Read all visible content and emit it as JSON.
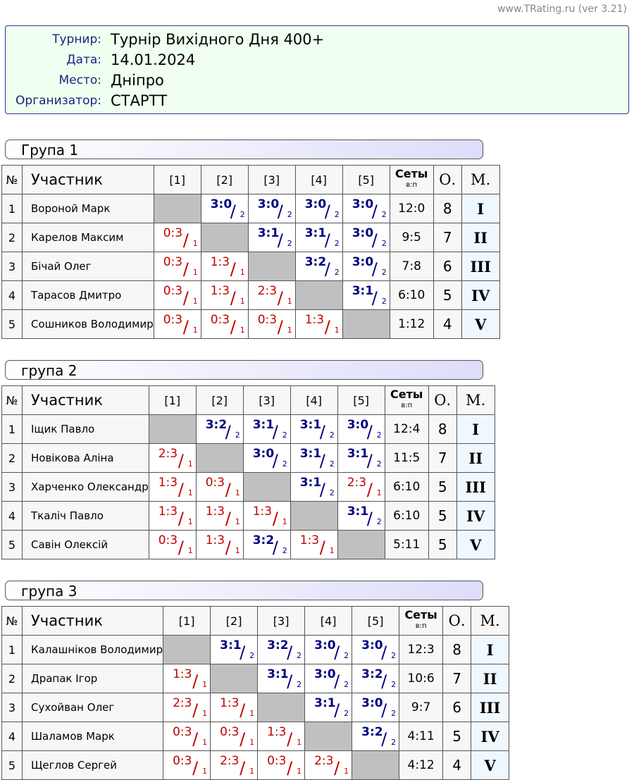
{
  "site": "www.TRating.ru (ver 3.21)",
  "info": [
    {
      "label": "Турнир:",
      "value": "Турнір Вихідного Дня 400+"
    },
    {
      "label": "Дата:",
      "value": "14.01.2024"
    },
    {
      "label": "Место:",
      "value": "Дніпро"
    },
    {
      "label": "Организатор:",
      "value": "СТАРТТ"
    }
  ],
  "table_header": {
    "num": "№",
    "participant": "Участник",
    "cols": [
      "[1]",
      "[2]",
      "[3]",
      "[4]",
      "[5]"
    ],
    "sets": "Сеты",
    "sets_sub": "в:п",
    "points": "О.",
    "place": "М."
  },
  "groups": [
    {
      "title": "Група 1",
      "rows": [
        {
          "num": 1,
          "name": "Вороной Марк",
          "results": [
            null,
            {
              "score": "3:0",
              "points": 2
            },
            {
              "score": "3:0",
              "points": 2
            },
            {
              "score": "3:0",
              "points": 2
            },
            {
              "score": "3:0",
              "points": 2
            }
          ],
          "sets": "12:0",
          "total": 8,
          "place": "I"
        },
        {
          "num": 2,
          "name": "Карелов Максим",
          "results": [
            {
              "score": "0:3",
              "points": 1
            },
            null,
            {
              "score": "3:1",
              "points": 2
            },
            {
              "score": "3:1",
              "points": 2
            },
            {
              "score": "3:0",
              "points": 2
            }
          ],
          "sets": "9:5",
          "total": 7,
          "place": "II"
        },
        {
          "num": 3,
          "name": "Бічай Олег",
          "results": [
            {
              "score": "0:3",
              "points": 1
            },
            {
              "score": "1:3",
              "points": 1
            },
            null,
            {
              "score": "3:2",
              "points": 2
            },
            {
              "score": "3:0",
              "points": 2
            }
          ],
          "sets": "7:8",
          "total": 6,
          "place": "III"
        },
        {
          "num": 4,
          "name": "Тарасов Дмитро",
          "results": [
            {
              "score": "0:3",
              "points": 1
            },
            {
              "score": "1:3",
              "points": 1
            },
            {
              "score": "2:3",
              "points": 1
            },
            null,
            {
              "score": "3:1",
              "points": 2
            }
          ],
          "sets": "6:10",
          "total": 5,
          "place": "IV"
        },
        {
          "num": 5,
          "name": "Сошников Володимир",
          "results": [
            {
              "score": "0:3",
              "points": 1
            },
            {
              "score": "0:3",
              "points": 1
            },
            {
              "score": "0:3",
              "points": 1
            },
            {
              "score": "1:3",
              "points": 1
            },
            null
          ],
          "sets": "1:12",
          "total": 4,
          "place": "V"
        }
      ]
    },
    {
      "title": "група 2",
      "rows": [
        {
          "num": 1,
          "name": "Іщик Павло",
          "results": [
            null,
            {
              "score": "3:2",
              "points": 2
            },
            {
              "score": "3:1",
              "points": 2
            },
            {
              "score": "3:1",
              "points": 2
            },
            {
              "score": "3:0",
              "points": 2
            }
          ],
          "sets": "12:4",
          "total": 8,
          "place": "I"
        },
        {
          "num": 2,
          "name": "Новікова Аліна",
          "results": [
            {
              "score": "2:3",
              "points": 1
            },
            null,
            {
              "score": "3:0",
              "points": 2
            },
            {
              "score": "3:1",
              "points": 2
            },
            {
              "score": "3:1",
              "points": 2
            }
          ],
          "sets": "11:5",
          "total": 7,
          "place": "II"
        },
        {
          "num": 3,
          "name": "Харченко Олександр",
          "results": [
            {
              "score": "1:3",
              "points": 1
            },
            {
              "score": "0:3",
              "points": 1
            },
            null,
            {
              "score": "3:1",
              "points": 2
            },
            {
              "score": "2:3",
              "points": 1
            }
          ],
          "sets": "6:10",
          "total": 5,
          "place": "III"
        },
        {
          "num": 4,
          "name": "Ткаліч Павло",
          "results": [
            {
              "score": "1:3",
              "points": 1
            },
            {
              "score": "1:3",
              "points": 1
            },
            {
              "score": "1:3",
              "points": 1
            },
            null,
            {
              "score": "3:1",
              "points": 2
            }
          ],
          "sets": "6:10",
          "total": 5,
          "place": "IV"
        },
        {
          "num": 5,
          "name": "Савін Олексій",
          "results": [
            {
              "score": "0:3",
              "points": 1
            },
            {
              "score": "1:3",
              "points": 1
            },
            {
              "score": "3:2",
              "points": 2
            },
            {
              "score": "1:3",
              "points": 1
            },
            null
          ],
          "sets": "5:11",
          "total": 5,
          "place": "V"
        }
      ]
    },
    {
      "title": "група 3",
      "rows": [
        {
          "num": 1,
          "name": "Калашніков Володимир",
          "results": [
            null,
            {
              "score": "3:1",
              "points": 2
            },
            {
              "score": "3:2",
              "points": 2
            },
            {
              "score": "3:0",
              "points": 2
            },
            {
              "score": "3:0",
              "points": 2
            }
          ],
          "sets": "12:3",
          "total": 8,
          "place": "I"
        },
        {
          "num": 2,
          "name": "Драпак Ігор",
          "results": [
            {
              "score": "1:3",
              "points": 1
            },
            null,
            {
              "score": "3:1",
              "points": 2
            },
            {
              "score": "3:0",
              "points": 2
            },
            {
              "score": "3:2",
              "points": 2
            }
          ],
          "sets": "10:6",
          "total": 7,
          "place": "II"
        },
        {
          "num": 3,
          "name": "Сухойван Олег",
          "results": [
            {
              "score": "2:3",
              "points": 1
            },
            {
              "score": "1:3",
              "points": 1
            },
            null,
            {
              "score": "3:1",
              "points": 2
            },
            {
              "score": "3:0",
              "points": 2
            }
          ],
          "sets": "9:7",
          "total": 6,
          "place": "III"
        },
        {
          "num": 4,
          "name": "Шаламов Марк",
          "results": [
            {
              "score": "0:3",
              "points": 1
            },
            {
              "score": "0:3",
              "points": 1
            },
            {
              "score": "1:3",
              "points": 1
            },
            null,
            {
              "score": "3:2",
              "points": 2
            }
          ],
          "sets": "4:11",
          "total": 5,
          "place": "IV"
        },
        {
          "num": 5,
          "name": "Щеглов Сергей",
          "results": [
            {
              "score": "0:3",
              "points": 1
            },
            {
              "score": "2:3",
              "points": 1
            },
            {
              "score": "0:3",
              "points": 1
            },
            {
              "score": "2:3",
              "points": 1
            },
            null
          ],
          "sets": "4:12",
          "total": 4,
          "place": "V"
        }
      ]
    }
  ]
}
